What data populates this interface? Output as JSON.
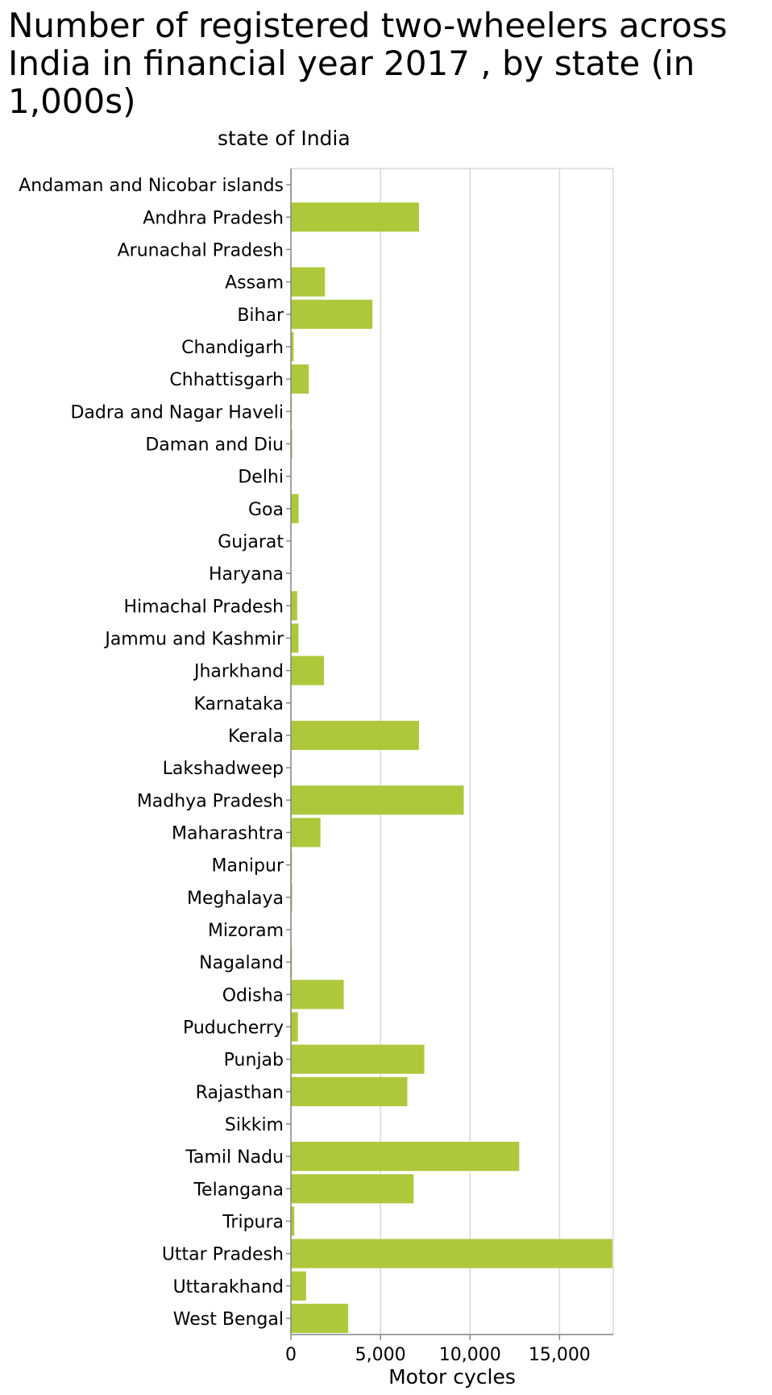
{
  "chart_data": {
    "type": "bar",
    "orientation": "horizontal",
    "title": "Number of registered two-wheelers across India in financial year 2017 , by state (in 1,000s)",
    "ylabel": "state of India",
    "xlabel": "Motor cycles",
    "categories": [
      "Andaman and Nicobar islands",
      "Andhra Pradesh",
      "Arunachal Pradesh",
      "Assam",
      "Bihar",
      "Chandigarh",
      "Chhattisgarh",
      "Dadra and Nagar Haveli",
      "Daman and Diu",
      "Delhi",
      "Goa",
      "Gujarat",
      "Haryana",
      "Himachal Pradesh",
      "Jammu and Kashmir",
      "Jharkhand",
      "Karnataka",
      "Kerala",
      "Lakshadweep",
      "Madhya Pradesh",
      "Maharashtra",
      "Manipur",
      "Meghalaya",
      "Mizoram",
      "Nagaland",
      "Odisha",
      "Puducherry",
      "Punjab",
      "Rajasthan",
      "Sikkim",
      "Tamil Nadu",
      "Telangana",
      "Tripura",
      "Uttar Pradesh",
      "Uttarakhand",
      "West Bengal"
    ],
    "values": [
      40,
      7150,
      15,
      1900,
      4550,
      150,
      1000,
      50,
      70,
      0,
      430,
      0,
      0,
      350,
      420,
      1850,
      0,
      7150,
      5,
      9650,
      1650,
      60,
      70,
      25,
      60,
      2950,
      390,
      7450,
      6500,
      10,
      12750,
      6850,
      190,
      17950,
      850,
      3200
    ],
    "xlim": [
      0,
      18000
    ],
    "xticks": [
      0,
      5000,
      10000,
      15000
    ],
    "xtick_labels": [
      "0",
      "5,000",
      "10,000",
      "15,000"
    ],
    "grid": "vertical",
    "legend": "none",
    "bar_color": "#adc83b",
    "grid_color": "#d9d9d9",
    "axis_color": "#888888"
  }
}
